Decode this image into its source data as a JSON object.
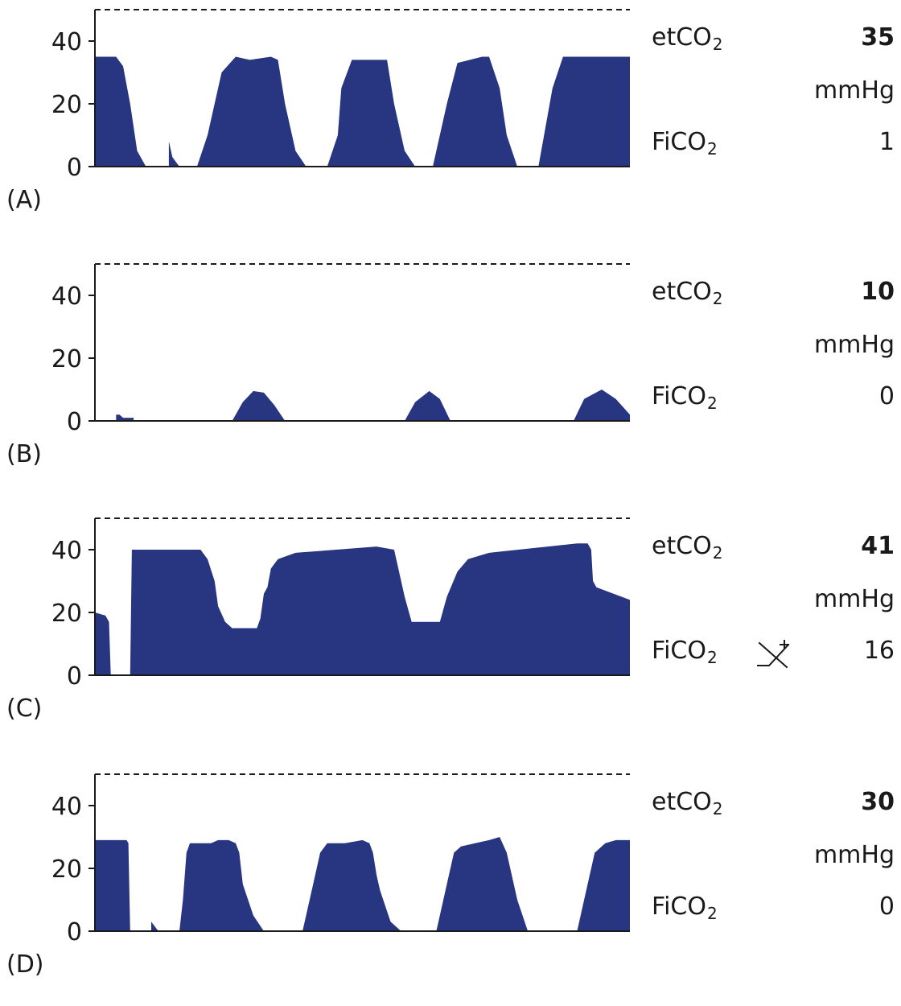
{
  "colors": {
    "waveform": "#283580",
    "axis": "#1a1a1a"
  },
  "labels": {
    "etco2_main": "etCO",
    "etco2_sub": "2",
    "fico2_main": "FiCO",
    "fico2_sub": "2",
    "unit": "mmHg"
  },
  "chart_data": [
    {
      "type": "area",
      "panel_label": "(A)",
      "ylim": [
        0,
        50
      ],
      "yticks": [
        0,
        20,
        40
      ],
      "reference_line": 50,
      "etco2": "35",
      "fico2": "1",
      "icon": "",
      "segments": [
        [
          [
            0,
            35
          ],
          [
            6,
            35
          ],
          [
            8,
            32
          ],
          [
            10,
            20
          ],
          [
            12,
            5
          ],
          [
            14.5,
            0
          ]
        ],
        [
          [
            21,
            8
          ],
          [
            22,
            3
          ],
          [
            24,
            0
          ]
        ],
        [
          [
            29,
            0
          ],
          [
            32,
            10
          ],
          [
            35,
            25
          ],
          [
            36,
            30
          ],
          [
            40,
            35
          ],
          [
            44,
            34
          ],
          [
            50,
            35
          ],
          [
            52,
            34
          ],
          [
            54,
            20
          ],
          [
            57,
            5
          ],
          [
            60,
            0
          ]
        ],
        [
          [
            66,
            0
          ],
          [
            69,
            10
          ],
          [
            70,
            25
          ],
          [
            73,
            34
          ],
          [
            80,
            34
          ],
          [
            83,
            34
          ],
          [
            85,
            20
          ],
          [
            88,
            5
          ],
          [
            91,
            0
          ]
        ],
        [
          [
            96,
            0
          ],
          [
            100,
            20
          ],
          [
            103,
            33
          ],
          [
            110,
            35
          ],
          [
            112,
            35
          ],
          [
            115,
            25
          ],
          [
            117,
            10
          ],
          [
            120,
            0
          ]
        ],
        [
          [
            126,
            0
          ],
          [
            130,
            25
          ],
          [
            133,
            35
          ],
          [
            152,
            35
          ]
        ]
      ]
    },
    {
      "type": "area",
      "panel_label": "(B)",
      "ylim": [
        0,
        50
      ],
      "yticks": [
        0,
        20,
        40
      ],
      "reference_line": 50,
      "etco2": "10",
      "fico2": "0",
      "icon": "",
      "segments": [
        [
          [
            6,
            2
          ],
          [
            7,
            2
          ],
          [
            8,
            1
          ],
          [
            10,
            1
          ],
          [
            11,
            1
          ]
        ],
        [
          [
            39,
            0
          ],
          [
            42,
            6
          ],
          [
            45,
            9.5
          ],
          [
            48,
            9
          ],
          [
            51,
            5
          ],
          [
            54,
            0
          ]
        ],
        [
          [
            88,
            0
          ],
          [
            91,
            6
          ],
          [
            95,
            9.5
          ],
          [
            98,
            7
          ],
          [
            101,
            0
          ]
        ],
        [
          [
            136,
            0
          ],
          [
            139,
            7
          ],
          [
            144,
            10
          ],
          [
            148,
            7
          ],
          [
            152,
            2
          ]
        ]
      ]
    },
    {
      "type": "area",
      "panel_label": "(C)",
      "ylim": [
        0,
        50
      ],
      "yticks": [
        0,
        20,
        40
      ],
      "reference_line": 50,
      "etco2": "41",
      "fico2": "16",
      "icon": "scavenging-icon",
      "segments": [
        [
          [
            0,
            20
          ],
          [
            3,
            19
          ],
          [
            4,
            17
          ],
          [
            4.5,
            0
          ]
        ],
        [
          [
            10,
            0
          ],
          [
            10.5,
            40
          ],
          [
            30,
            40
          ],
          [
            32,
            37
          ],
          [
            34,
            30
          ],
          [
            35,
            22
          ],
          [
            37,
            17
          ],
          [
            39,
            15
          ],
          [
            46,
            15
          ],
          [
            47,
            18
          ],
          [
            48,
            26
          ],
          [
            49,
            28
          ],
          [
            50,
            34
          ],
          [
            52,
            37
          ],
          [
            57,
            39
          ],
          [
            80,
            41
          ],
          [
            85,
            40
          ],
          [
            86,
            35
          ],
          [
            88,
            25
          ],
          [
            90,
            17
          ],
          [
            93,
            17
          ],
          [
            98,
            17
          ],
          [
            100,
            25
          ],
          [
            103,
            33
          ],
          [
            106,
            37
          ],
          [
            112,
            39
          ],
          [
            137,
            42
          ],
          [
            140,
            42
          ],
          [
            141,
            40
          ],
          [
            141.5,
            30
          ],
          [
            142.5,
            28
          ],
          [
            152,
            24
          ]
        ]
      ]
    },
    {
      "type": "area",
      "panel_label": "(D)",
      "ylim": [
        0,
        50
      ],
      "yticks": [
        0,
        20,
        40
      ],
      "reference_line": 50,
      "etco2": "30",
      "fico2": "0",
      "icon": "",
      "segments": [
        [
          [
            0,
            29
          ],
          [
            9,
            29
          ],
          [
            9.5,
            28
          ],
          [
            10,
            0
          ]
        ],
        [
          [
            16,
            3
          ],
          [
            18,
            0
          ]
        ],
        [
          [
            24,
            0
          ],
          [
            25,
            10
          ],
          [
            26,
            25
          ],
          [
            27,
            28
          ],
          [
            31,
            28
          ],
          [
            33,
            28
          ],
          [
            35,
            29
          ],
          [
            38,
            29
          ],
          [
            40,
            28
          ],
          [
            41,
            25
          ],
          [
            42,
            15
          ],
          [
            45,
            5
          ],
          [
            48,
            0
          ]
        ],
        [
          [
            59,
            0
          ],
          [
            62,
            15
          ],
          [
            64,
            25
          ],
          [
            66,
            28
          ],
          [
            71,
            28
          ],
          [
            76,
            29
          ],
          [
            78,
            28
          ],
          [
            79,
            25
          ],
          [
            80,
            18
          ],
          [
            81,
            13
          ],
          [
            84,
            3
          ],
          [
            87,
            0
          ]
        ],
        [
          [
            97,
            0
          ],
          [
            100,
            15
          ],
          [
            102,
            25
          ],
          [
            104,
            27
          ],
          [
            108,
            28
          ],
          [
            112,
            29
          ],
          [
            115,
            30
          ],
          [
            117,
            25
          ],
          [
            120,
            10
          ],
          [
            123,
            0
          ]
        ],
        [
          [
            137,
            0
          ],
          [
            140,
            15
          ],
          [
            142,
            25
          ],
          [
            145,
            28
          ],
          [
            148,
            29
          ],
          [
            152,
            29
          ]
        ]
      ]
    }
  ]
}
